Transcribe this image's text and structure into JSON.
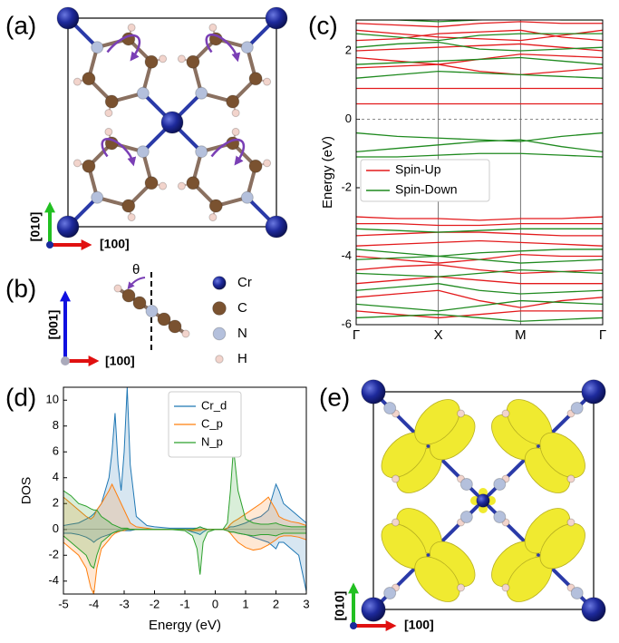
{
  "panels": {
    "a": {
      "label": "(a)",
      "axis_y": "[010]",
      "axis_x": "[100]"
    },
    "b": {
      "label": "(b)",
      "axis_y": "[001]",
      "axis_x": "[100]",
      "angle": "θ",
      "legend": [
        "Cr",
        "C",
        "N",
        "H"
      ]
    },
    "c": {
      "label": "(c)"
    },
    "d": {
      "label": "(d)"
    },
    "e": {
      "label": "(e)",
      "axis_y": "[010]",
      "axis_x": "[100]"
    }
  },
  "chart_data": [
    {
      "type": "bands",
      "ylabel": "Energy (eV)",
      "x": [
        0,
        0.5,
        1,
        1.5,
        2,
        2.5,
        3
      ],
      "xlim": [
        0,
        3
      ],
      "xticks": [
        {
          "value": 0,
          "label": "Γ"
        },
        {
          "value": 1,
          "label": "X"
        },
        {
          "value": 2,
          "label": "M"
        },
        {
          "value": 3,
          "label": "Γ"
        }
      ],
      "ylim": [
        -6,
        2.9
      ],
      "yticks": [
        -6,
        -4,
        -2,
        0,
        2
      ],
      "series": [
        {
          "name": "Spin-Up",
          "color": "#e31a1c",
          "values": [
            [
              2.8,
              2.75,
              2.7,
              2.8,
              2.85,
              2.8,
              2.8
            ],
            [
              2.6,
              2.5,
              2.4,
              2.35,
              2.3,
              2.45,
              2.6
            ],
            [
              2.3,
              2.35,
              2.5,
              2.55,
              2.6,
              2.4,
              2.3
            ],
            [
              2.0,
              2.05,
              2.1,
              2.15,
              2.2,
              2.1,
              2.0
            ],
            [
              1.8,
              1.7,
              1.6,
              1.75,
              1.9,
              1.85,
              1.8
            ],
            [
              1.5,
              1.55,
              1.6,
              1.4,
              1.3,
              1.4,
              1.5
            ],
            [
              0.9,
              0.9,
              0.9,
              0.9,
              0.9,
              0.9,
              0.9
            ],
            [
              0.45,
              0.45,
              0.45,
              0.45,
              0.45,
              0.45,
              0.45
            ],
            [
              -2.85,
              -2.9,
              -2.9,
              -2.95,
              -2.9,
              -2.9,
              -2.85
            ],
            [
              -3.05,
              -3.05,
              -3.1,
              -3.1,
              -3.05,
              -3.05,
              -3.05
            ],
            [
              -3.4,
              -3.35,
              -3.3,
              -3.3,
              -3.35,
              -3.4,
              -3.4
            ],
            [
              -3.7,
              -3.65,
              -3.6,
              -3.55,
              -3.6,
              -3.65,
              -3.7
            ],
            [
              -4.0,
              -4.1,
              -4.2,
              -4.1,
              -3.95,
              -4.0,
              -4.0
            ],
            [
              -4.4,
              -4.3,
              -4.25,
              -4.4,
              -4.5,
              -4.45,
              -4.4
            ],
            [
              -4.8,
              -4.7,
              -4.6,
              -4.7,
              -4.8,
              -4.8,
              -4.8
            ],
            [
              -5.2,
              -5.1,
              -5.0,
              -5.3,
              -5.5,
              -5.3,
              -5.2
            ],
            [
              -5.6,
              -5.7,
              -5.8,
              -5.7,
              -5.6,
              -5.6,
              -5.6
            ]
          ]
        },
        {
          "name": "Spin-Down",
          "color": "#1f8a1f",
          "values": [
            [
              2.9,
              2.9,
              2.85,
              2.9,
              2.95,
              2.9,
              2.9
            ],
            [
              2.5,
              2.4,
              2.3,
              2.45,
              2.5,
              2.5,
              2.5
            ],
            [
              2.1,
              2.2,
              2.25,
              2.05,
              2.0,
              2.05,
              2.1
            ],
            [
              1.6,
              1.65,
              1.7,
              1.75,
              1.8,
              1.7,
              1.6
            ],
            [
              1.2,
              1.3,
              1.4,
              1.35,
              1.3,
              1.25,
              1.2
            ],
            [
              -0.4,
              -0.5,
              -0.55,
              -0.6,
              -0.65,
              -0.5,
              -0.4
            ],
            [
              -0.95,
              -0.85,
              -0.75,
              -0.65,
              -0.6,
              -0.8,
              -0.95
            ],
            [
              -1.1,
              -1.1,
              -1.05,
              -1.0,
              -1.0,
              -1.05,
              -1.1
            ],
            [
              -3.2,
              -3.25,
              -3.3,
              -3.25,
              -3.2,
              -3.2,
              -3.2
            ],
            [
              -3.8,
              -3.9,
              -4.0,
              -3.9,
              -3.85,
              -3.8,
              -3.8
            ],
            [
              -4.1,
              -4.05,
              -4.0,
              -4.1,
              -4.2,
              -4.15,
              -4.1
            ],
            [
              -4.5,
              -4.55,
              -4.6,
              -4.5,
              -4.4,
              -4.45,
              -4.5
            ],
            [
              -5.0,
              -4.9,
              -4.8,
              -5.0,
              -5.1,
              -5.05,
              -5.0
            ],
            [
              -5.4,
              -5.5,
              -5.6,
              -5.45,
              -5.3,
              -5.35,
              -5.4
            ],
            [
              -5.8,
              -5.75,
              -5.7,
              -5.8,
              -5.9,
              -5.85,
              -5.8
            ]
          ]
        }
      ]
    },
    {
      "type": "dos",
      "xlabel": "Energy (eV)",
      "ylabel": "DOS",
      "x": [
        -5,
        -4.75,
        -4.5,
        -4.25,
        -4.1,
        -4,
        -3.9,
        -3.75,
        -3.5,
        -3.4,
        -3.3,
        -3.2,
        -3.1,
        -3,
        -2.9,
        -2.8,
        -2.6,
        -2.25,
        -2,
        -1.5,
        -1,
        -0.75,
        -0.6,
        -0.5,
        -0.4,
        -0.25,
        0,
        0.25,
        0.4,
        0.5,
        0.6,
        0.75,
        1,
        1.25,
        1.5,
        1.75,
        2,
        2.1,
        2.25,
        2.5,
        2.75,
        3
      ],
      "xlim": [
        -5,
        3
      ],
      "xticks": [
        -5,
        -4,
        -3,
        -2,
        -1,
        0,
        1,
        2,
        3
      ],
      "ylim": [
        -5,
        11
      ],
      "yticks": [
        -4,
        -2,
        0,
        2,
        4,
        6,
        8,
        10
      ],
      "series": [
        {
          "name": "Cr_d",
          "color": "#1f77b4",
          "values": [
            0.3,
            0.4,
            0.5,
            0.8,
            1,
            1.2,
            1.5,
            2,
            4,
            6,
            9,
            5,
            3,
            6,
            11,
            5,
            1,
            0.3,
            0.2,
            0.1,
            0.1,
            0.1,
            0.1,
            0.2,
            0.1,
            0,
            0,
            0,
            0.1,
            0.2,
            0.2,
            0.3,
            0.5,
            0.8,
            1,
            1.5,
            3.5,
            3,
            2,
            1.5,
            1,
            0.5
          ],
          "down_values": [
            -0.3,
            -0.3,
            -0.4,
            -0.6,
            -0.8,
            -1,
            -0.8,
            -0.6,
            -0.4,
            -0.3,
            -0.2,
            -0.2,
            -0.1,
            -0.1,
            -0.1,
            -0.1,
            0,
            0,
            0,
            0,
            0,
            -0.2,
            -0.3,
            -0.4,
            -0.2,
            0,
            0,
            0,
            -0.1,
            -0.2,
            -0.2,
            -0.3,
            -0.4,
            -0.6,
            -0.8,
            -1,
            -1.5,
            -1,
            -1,
            -1.5,
            -2,
            -4.8
          ]
        },
        {
          "name": "C_p",
          "color": "#ff7f0e",
          "values": [
            2.5,
            2,
            1.5,
            1,
            0.8,
            1,
            1.5,
            2,
            3,
            3.5,
            3,
            2.5,
            2,
            1.5,
            1,
            0.5,
            0.2,
            0.1,
            0,
            0,
            0,
            0,
            0,
            0,
            0,
            0,
            0,
            0,
            0.1,
            0.4,
            0.6,
            0.8,
            1.2,
            1.6,
            2,
            2.5,
            1.5,
            1,
            0.8,
            0.6,
            0.5,
            0.3
          ],
          "down_values": [
            -1,
            -1.5,
            -2,
            -3,
            -4.5,
            -5,
            -3,
            -1.5,
            -0.8,
            -0.5,
            -0.3,
            -0.2,
            -0.1,
            -0.1,
            0,
            0,
            0,
            0,
            0,
            0,
            0,
            -0.1,
            -0.1,
            -0.1,
            0,
            0,
            0,
            0,
            -0.1,
            -0.3,
            -0.6,
            -1,
            -1.4,
            -1.6,
            -1.5,
            -1.2,
            -0.8,
            -0.6,
            -0.5,
            -0.5,
            -0.6,
            -0.8
          ]
        },
        {
          "name": "N_p",
          "color": "#2ca02c",
          "values": [
            3,
            2.6,
            2,
            1.8,
            1.6,
            1.5,
            1.5,
            1,
            0.6,
            0.4,
            0.3,
            0.2,
            0.1,
            0.1,
            0.1,
            0,
            0,
            0,
            0,
            0,
            0,
            0,
            0.1,
            0.2,
            0.1,
            0,
            0,
            0,
            0.5,
            3,
            6.3,
            3,
            0.8,
            0.5,
            0.4,
            0.4,
            0.5,
            0.4,
            0.3,
            0.2,
            0.2,
            0.2
          ],
          "down_values": [
            -0.5,
            -1,
            -1.5,
            -2,
            -2.8,
            -3,
            -2,
            -1,
            -0.5,
            -0.3,
            -0.2,
            -0.1,
            -0.1,
            0,
            0,
            0,
            0,
            0,
            0,
            0,
            -0.1,
            -0.5,
            -1.5,
            -3.5,
            -1,
            -0.2,
            0,
            0,
            -0.1,
            -0.2,
            -0.2,
            -0.3,
            -0.4,
            -0.5,
            -0.4,
            -0.4,
            -0.5,
            -0.4,
            -0.3,
            -0.3,
            -0.3,
            -0.3
          ]
        }
      ]
    }
  ]
}
